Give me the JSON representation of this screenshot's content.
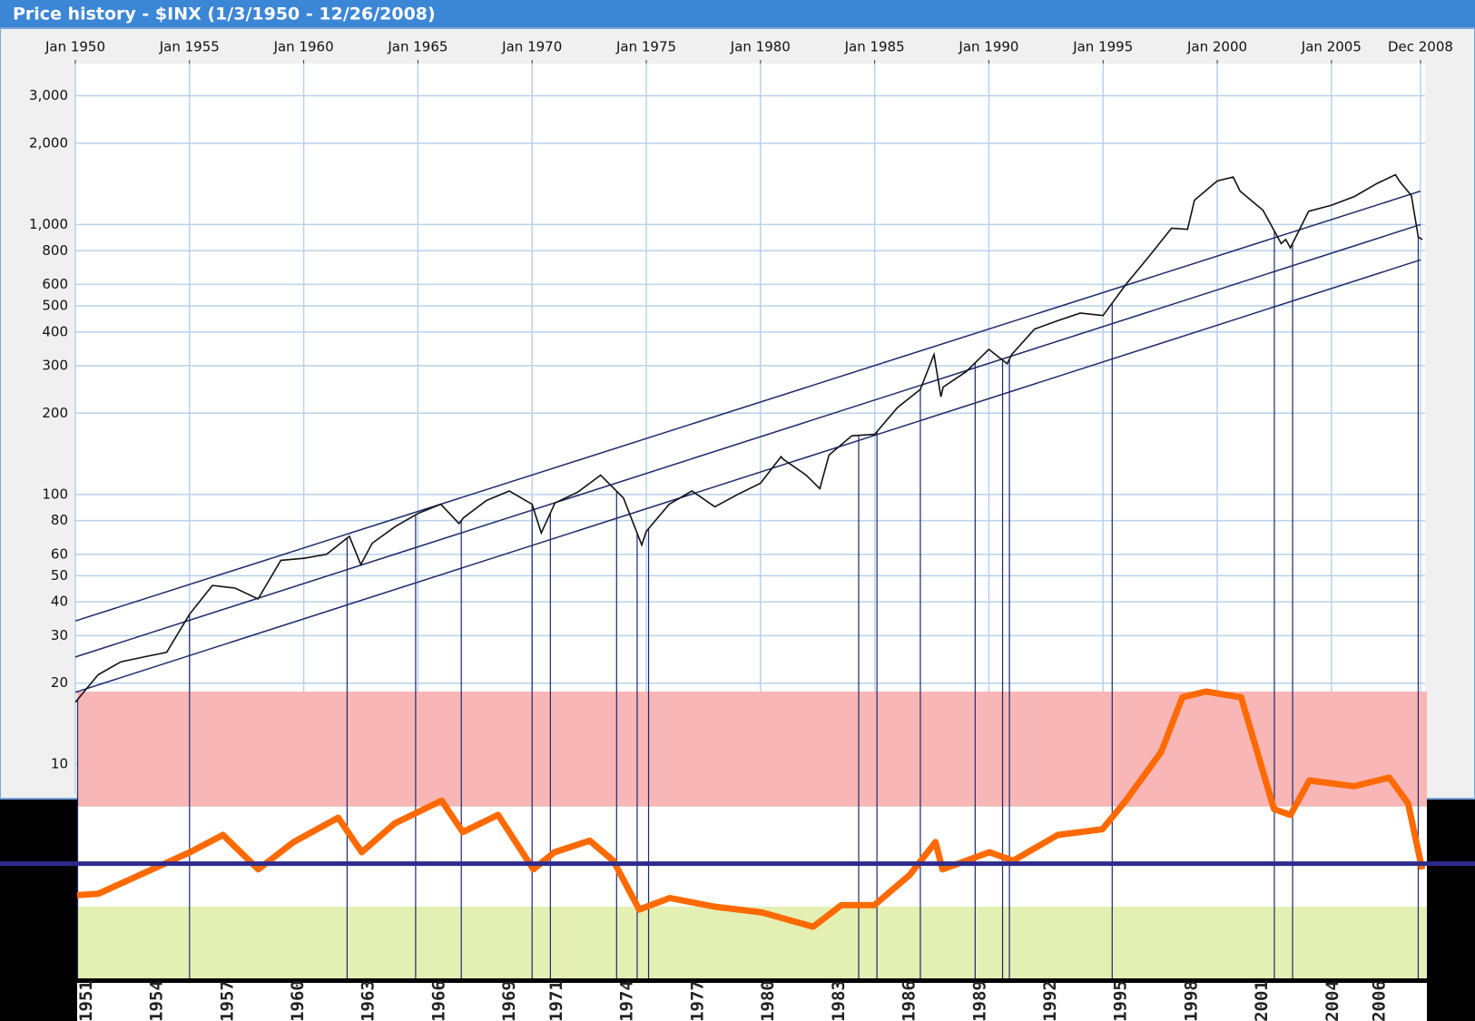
{
  "chart_data": [
    {
      "type": "line",
      "title": "Price history - $INX (1/3/1950 - 12/26/2008)",
      "log_scale_y": true,
      "grid": true,
      "color": "#111111",
      "xlim": [
        1950,
        2009.1
      ],
      "ylim": [
        7.7,
        3950
      ],
      "xticks": [
        {
          "value": 1950,
          "label": "Jan 1950"
        },
        {
          "value": 1955,
          "label": "Jan 1955"
        },
        {
          "value": 1960,
          "label": "Jan 1960"
        },
        {
          "value": 1965,
          "label": "Jan 1965"
        },
        {
          "value": 1970,
          "label": "Jan 1970"
        },
        {
          "value": 1975,
          "label": "Jan 1975"
        },
        {
          "value": 1980,
          "label": "Jan 1980"
        },
        {
          "value": 1985,
          "label": "Jan 1985"
        },
        {
          "value": 1990,
          "label": "Jan 1990"
        },
        {
          "value": 1995,
          "label": "Jan 1995"
        },
        {
          "value": 2000,
          "label": "Jan 2000"
        },
        {
          "value": 2005,
          "label": "Jan 2005"
        },
        {
          "value": 2008.9,
          "label": "Dec 2008"
        }
      ],
      "yticks": [
        10,
        20,
        30,
        40,
        50,
        60,
        80,
        100,
        200,
        300,
        400,
        500,
        600,
        800,
        {
          "value": 1000,
          "label": "1,000"
        },
        {
          "value": 2000,
          "label": "2,000"
        },
        {
          "value": 3000,
          "label": "3,000"
        }
      ],
      "x": [
        1950,
        1951,
        1952,
        1953,
        1954,
        1955,
        1956,
        1957,
        1958,
        1959,
        1960,
        1961,
        1962,
        1962.5,
        1963,
        1964,
        1965,
        1966,
        1966.8,
        1967,
        1968,
        1969,
        1970,
        1970.4,
        1971,
        1972,
        1973,
        1974,
        1974.8,
        1975,
        1976,
        1977,
        1978,
        1979,
        1980,
        1980.9,
        1981,
        1982,
        1982.6,
        1983,
        1984,
        1985,
        1986,
        1987,
        1987.6,
        1987.9,
        1988,
        1989,
        1990,
        1990.8,
        1991,
        1992,
        1993,
        1994,
        1995,
        1996,
        1997,
        1998,
        1998.7,
        1999,
        2000,
        2000.7,
        2001,
        2002,
        2002.8,
        2003,
        2003.2,
        2004,
        2005,
        2006,
        2007,
        2007.8,
        2008,
        2008.5,
        2008.8,
        2008.98
      ],
      "values": [
        17,
        21.5,
        24,
        25,
        26,
        36,
        46,
        45,
        41,
        57,
        58,
        60,
        70,
        55,
        66,
        76,
        85,
        92,
        78,
        82,
        95,
        103,
        92,
        72,
        93,
        102,
        118,
        97,
        65,
        73,
        92,
        103,
        90,
        100,
        110,
        138,
        135,
        118,
        105,
        140,
        165,
        167,
        210,
        245,
        330,
        230,
        250,
        285,
        345,
        305,
        330,
        410,
        440,
        470,
        460,
        600,
        760,
        970,
        960,
        1230,
        1450,
        1500,
        1330,
        1130,
        850,
        880,
        820,
        1120,
        1180,
        1270,
        1420,
        1530,
        1440,
        1280,
        900,
        880
      ],
      "channel_lines": [
        {
          "x": [
            1950,
            2008.9
          ],
          "values": [
            34,
            1330
          ]
        },
        {
          "x": [
            1950,
            2008.9
          ],
          "values": [
            25,
            1000
          ]
        },
        {
          "x": [
            1950,
            2008.9
          ],
          "values": [
            18.5,
            740
          ]
        }
      ],
      "channel_color": "#1b2a6b",
      "crossings": [
        1950.1,
        1955.0,
        1961.9,
        1964.9,
        1966.9,
        1970.0,
        1970.8,
        1973.7,
        1974.6,
        1975.1,
        1984.3,
        1985.1,
        1987.0,
        1989.4,
        1990.6,
        1990.9,
        1995.4,
        2002.5,
        2003.3,
        2008.8
      ]
    },
    {
      "type": "line",
      "color": "#ff6a00",
      "xlim": [
        1950.6,
        2008
      ],
      "ylim": [
        0,
        100
      ],
      "xticks": [
        1951,
        1954,
        1957,
        1960,
        1963,
        1966,
        1969,
        1971,
        1974,
        1977,
        1980,
        1983,
        1986,
        1989,
        1992,
        1995,
        1998,
        2001,
        2004,
        2006
      ],
      "x": [
        1950.6,
        1951.5,
        1955.4,
        1956.8,
        1958.3,
        1959.8,
        1961.7,
        1962.7,
        1964.1,
        1966.1,
        1967,
        1968.5,
        1970,
        1970.9,
        1972.4,
        1973.4,
        1974.5,
        1975.8,
        1977.7,
        1979.7,
        1981.9,
        1983.1,
        1984.5,
        1986,
        1987.1,
        1987.4,
        1989.4,
        1990.4,
        1992.3,
        1994.2,
        1995.2,
        1996.7,
        1997.6,
        1998.6,
        2000.1,
        2001.5,
        2002.2,
        2003,
        2004.9,
        2006.4,
        2007.2,
        2007.8
      ],
      "values": [
        29,
        29.5,
        44,
        50,
        38,
        47.5,
        56,
        44,
        54,
        62,
        51,
        57,
        38,
        44,
        48,
        41,
        24,
        28,
        25,
        23,
        18,
        25.5,
        25.5,
        36,
        47.5,
        38,
        44,
        41,
        50,
        52,
        62,
        79,
        98,
        100,
        98,
        59,
        57,
        69,
        67,
        70,
        61,
        38
      ],
      "bands": [
        {
          "from": 0,
          "to": 25,
          "color": "#e4efb4"
        },
        {
          "from": 25,
          "to": 60,
          "color": "#ffffff"
        },
        {
          "from": 60,
          "to": 100,
          "color": "#f9b6b6"
        }
      ],
      "reference_line": {
        "value": 40,
        "color": "#2e2b8c"
      }
    }
  ]
}
